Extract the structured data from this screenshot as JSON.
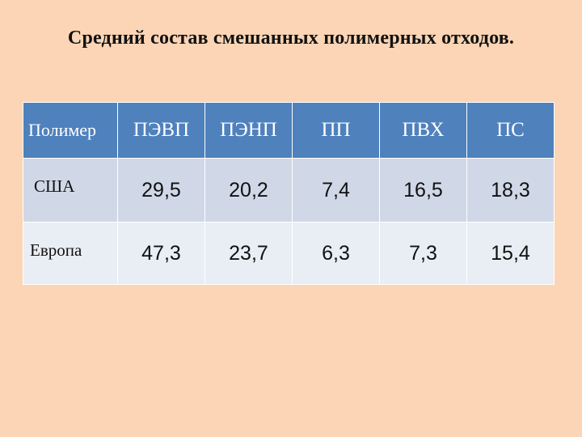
{
  "title": "Средний состав смешанных полимерных отходов.",
  "table": {
    "header": [
      "Полимер",
      "ПЭВП",
      "ПЭНП",
      "ПП",
      "ПВХ",
      "ПС"
    ],
    "rows": [
      {
        "label": "США",
        "values": [
          "29,5",
          "20,2",
          "7,4",
          "16,5",
          "18,3"
        ]
      },
      {
        "label": "Европа",
        "values": [
          "47,3",
          "23,7",
          "6,3",
          "7,3",
          "15,4"
        ]
      }
    ]
  },
  "colors": {
    "background": "#fbd5b5",
    "header": "#4f81bd",
    "row_odd": "#d0d8e8",
    "row_even": "#e9edf4"
  }
}
